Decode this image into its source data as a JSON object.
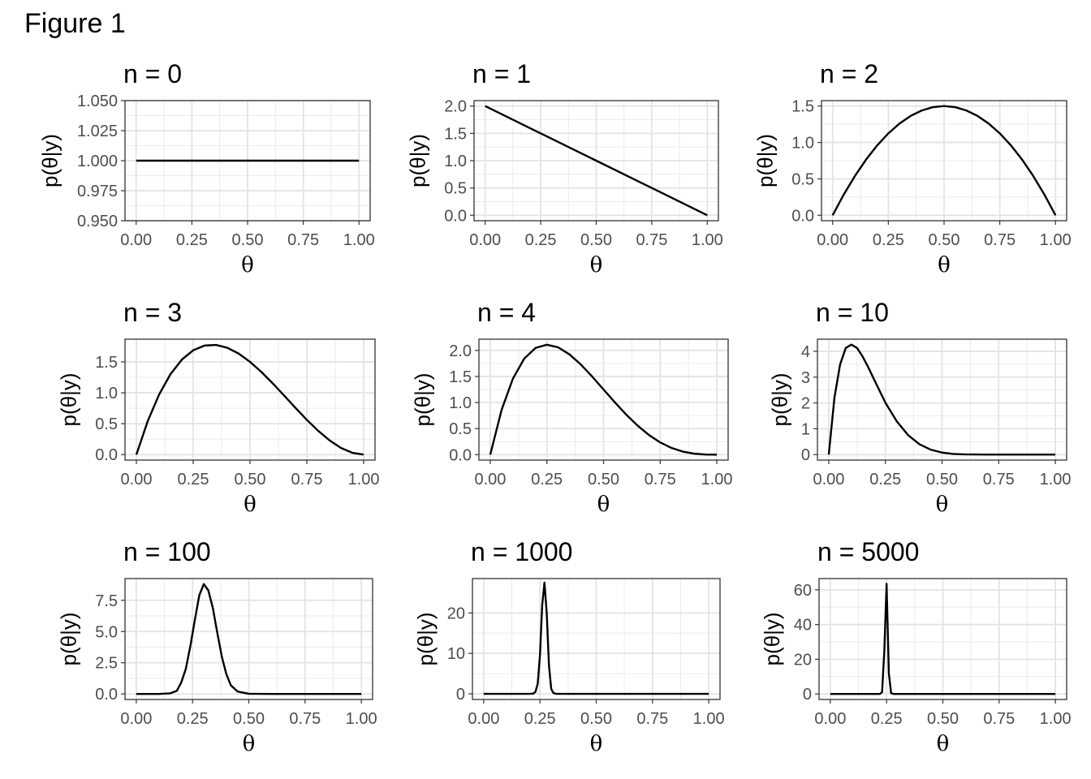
{
  "figure_title": "Figure 1",
  "chart_data": [
    {
      "type": "line",
      "title": "n = 0",
      "xlabel": "θ",
      "ylabel": "p(θ|y)",
      "xlim": [
        -0.05,
        1.05
      ],
      "ylim": [
        0.95,
        1.05
      ],
      "xticks": [
        0,
        0.25,
        0.5,
        0.75,
        1
      ],
      "xtick_labels": [
        "0.00",
        "0.25",
        "0.50",
        "0.75",
        "1.00"
      ],
      "yticks": [
        0.95,
        0.975,
        1.0,
        1.025,
        1.05
      ],
      "ytick_labels": [
        "0.950",
        "0.975",
        "1.000",
        "1.025",
        "1.050"
      ],
      "grid": true,
      "series": [
        {
          "x": [
            0,
            0.1,
            0.2,
            0.3,
            0.4,
            0.5,
            0.6,
            0.7,
            0.8,
            0.9,
            1
          ],
          "y": [
            1,
            1,
            1,
            1,
            1,
            1,
            1,
            1,
            1,
            1,
            1
          ]
        }
      ]
    },
    {
      "type": "line",
      "title": "n = 1",
      "xlabel": "θ",
      "ylabel": "p(θ|y)",
      "xlim": [
        -0.05,
        1.05
      ],
      "ylim": [
        -0.1,
        2.1
      ],
      "xticks": [
        0,
        0.25,
        0.5,
        0.75,
        1
      ],
      "xtick_labels": [
        "0.00",
        "0.25",
        "0.50",
        "0.75",
        "1.00"
      ],
      "yticks": [
        0,
        0.5,
        1,
        1.5,
        2
      ],
      "ytick_labels": [
        "0.0",
        "0.5",
        "1.0",
        "1.5",
        "2.0"
      ],
      "grid": true,
      "series": [
        {
          "x": [
            0,
            0.1,
            0.2,
            0.3,
            0.4,
            0.5,
            0.6,
            0.7,
            0.8,
            0.9,
            1
          ],
          "y": [
            2,
            1.8,
            1.6,
            1.4,
            1.2,
            1.0,
            0.8,
            0.6,
            0.4,
            0.2,
            0
          ]
        }
      ]
    },
    {
      "type": "line",
      "title": "n = 2",
      "xlabel": "θ",
      "ylabel": "p(θ|y)",
      "xlim": [
        -0.05,
        1.05
      ],
      "ylim": [
        -0.075,
        1.575
      ],
      "xticks": [
        0,
        0.25,
        0.5,
        0.75,
        1
      ],
      "xtick_labels": [
        "0.00",
        "0.25",
        "0.50",
        "0.75",
        "1.00"
      ],
      "yticks": [
        0,
        0.5,
        1,
        1.5
      ],
      "ytick_labels": [
        "0.0",
        "0.5",
        "1.0",
        "1.5"
      ],
      "grid": true,
      "series": [
        {
          "x": [
            0,
            0.05,
            0.1,
            0.15,
            0.2,
            0.25,
            0.3,
            0.35,
            0.4,
            0.45,
            0.5,
            0.55,
            0.6,
            0.65,
            0.7,
            0.75,
            0.8,
            0.85,
            0.9,
            0.95,
            1
          ],
          "y": [
            0,
            0.285,
            0.54,
            0.765,
            0.96,
            1.125,
            1.26,
            1.365,
            1.44,
            1.485,
            1.5,
            1.485,
            1.44,
            1.365,
            1.26,
            1.125,
            0.96,
            0.765,
            0.54,
            0.285,
            0
          ]
        }
      ]
    },
    {
      "type": "line",
      "title": "n = 3",
      "xlabel": "θ",
      "ylabel": "p(θ|y)",
      "xlim": [
        -0.05,
        1.05
      ],
      "ylim": [
        -0.089,
        1.867
      ],
      "xticks": [
        0,
        0.25,
        0.5,
        0.75,
        1
      ],
      "xtick_labels": [
        "0.00",
        "0.25",
        "0.50",
        "0.75",
        "1.00"
      ],
      "yticks": [
        0,
        0.5,
        1,
        1.5
      ],
      "ytick_labels": [
        "0.0",
        "0.5",
        "1.0",
        "1.5"
      ],
      "grid": true,
      "series": [
        {
          "x": [
            0,
            0.05,
            0.1,
            0.15,
            0.2,
            0.25,
            0.3,
            0.35,
            0.4,
            0.45,
            0.5,
            0.55,
            0.6,
            0.65,
            0.7,
            0.75,
            0.8,
            0.85,
            0.9,
            0.95,
            1
          ],
          "y": [
            0,
            0.542,
            0.972,
            1.301,
            1.536,
            1.688,
            1.764,
            1.774,
            1.728,
            1.634,
            1.5,
            1.337,
            1.152,
            0.956,
            0.756,
            0.562,
            0.384,
            0.23,
            0.108,
            0.029,
            0
          ]
        }
      ]
    },
    {
      "type": "line",
      "title": "n = 4",
      "xlabel": "θ",
      "ylabel": "p(θ|y)",
      "xlim": [
        -0.05,
        1.05
      ],
      "ylim": [
        -0.105,
        2.215
      ],
      "xticks": [
        0,
        0.25,
        0.5,
        0.75,
        1
      ],
      "xtick_labels": [
        "0.00",
        "0.25",
        "0.50",
        "0.75",
        "1.00"
      ],
      "yticks": [
        0,
        0.5,
        1,
        1.5,
        2
      ],
      "ytick_labels": [
        "0.0",
        "0.5",
        "1.0",
        "1.5",
        "2.0"
      ],
      "grid": true,
      "series": [
        {
          "x": [
            0,
            0.05,
            0.1,
            0.15,
            0.2,
            0.25,
            0.3,
            0.35,
            0.4,
            0.45,
            0.5,
            0.55,
            0.6,
            0.65,
            0.7,
            0.75,
            0.8,
            0.85,
            0.9,
            0.95,
            1
          ],
          "y": [
            0,
            0.857,
            1.458,
            1.843,
            2.048,
            2.109,
            2.058,
            1.922,
            1.728,
            1.497,
            1.25,
            1.003,
            0.768,
            0.558,
            0.378,
            0.234,
            0.128,
            0.058,
            0.018,
            0.002,
            0
          ]
        }
      ]
    },
    {
      "type": "line",
      "title": "n = 10",
      "xlabel": "θ",
      "ylabel": "p(θ|y)",
      "xlim": [
        -0.05,
        1.05
      ],
      "ylim": [
        -0.213,
        4.47
      ],
      "xticks": [
        0,
        0.25,
        0.5,
        0.75,
        1
      ],
      "xtick_labels": [
        "0.00",
        "0.25",
        "0.50",
        "0.75",
        "1.00"
      ],
      "yticks": [
        0,
        1,
        2,
        3,
        4
      ],
      "ytick_labels": [
        "0",
        "1",
        "2",
        "3",
        "4"
      ],
      "grid": true,
      "series": [
        {
          "x": [
            0,
            0.025,
            0.05,
            0.075,
            0.1,
            0.125,
            0.15,
            0.175,
            0.2,
            0.25,
            0.3,
            0.35,
            0.4,
            0.45,
            0.5,
            0.55,
            0.6,
            0.7,
            0.8,
            0.9,
            1
          ],
          "y": [
            0,
            2.2,
            3.49,
            4.13,
            4.26,
            4.13,
            3.79,
            3.37,
            2.91,
            2.01,
            1.29,
            0.756,
            0.403,
            0.191,
            0.078,
            0.026,
            0.0105,
            0.0006,
            0,
            0,
            0
          ]
        }
      ]
    },
    {
      "type": "line",
      "title": "n = 100",
      "xlabel": "θ",
      "ylabel": "p(θ|y)",
      "xlim": [
        -0.05,
        1.05
      ],
      "ylim": [
        -0.44,
        9.24
      ],
      "xticks": [
        0,
        0.25,
        0.5,
        0.75,
        1
      ],
      "xtick_labels": [
        "0.00",
        "0.25",
        "0.50",
        "0.75",
        "1.00"
      ],
      "yticks": [
        0,
        2.5,
        5,
        7.5
      ],
      "ytick_labels": [
        "0.0",
        "2.5",
        "5.0",
        "7.5"
      ],
      "grid": true,
      "series": [
        {
          "x": [
            0,
            0.1,
            0.15,
            0.18,
            0.2,
            0.22,
            0.24,
            0.26,
            0.28,
            0.3,
            0.32,
            0.34,
            0.36,
            0.38,
            0.4,
            0.42,
            0.45,
            0.5,
            0.6,
            1
          ],
          "y": [
            0,
            0,
            0.05,
            0.25,
            0.93,
            2.0,
            3.8,
            5.9,
            7.9,
            8.8,
            8.3,
            6.9,
            4.9,
            3.0,
            1.6,
            0.7,
            0.2,
            0.02,
            0,
            0
          ]
        }
      ]
    },
    {
      "type": "line",
      "title": "n = 1000",
      "xlabel": "θ",
      "ylabel": "p(θ|y)",
      "xlim": [
        -0.05,
        1.05
      ],
      "ylim": [
        -1.4,
        28.5
      ],
      "xticks": [
        0,
        0.25,
        0.5,
        0.75,
        1
      ],
      "xtick_labels": [
        "0.00",
        "0.25",
        "0.50",
        "0.75",
        "1.00"
      ],
      "yticks": [
        0,
        10,
        20
      ],
      "ytick_labels": [
        "0",
        "10",
        "20"
      ],
      "grid": true,
      "series": [
        {
          "x": [
            0,
            0.2,
            0.22,
            0.23,
            0.24,
            0.25,
            0.26,
            0.27,
            0.28,
            0.29,
            0.3,
            0.31,
            0.32,
            0.34,
            1
          ],
          "y": [
            0,
            0,
            0.05,
            0.5,
            2.5,
            9.5,
            22,
            27.5,
            20,
            7,
            1.2,
            0.2,
            0.02,
            0,
            0
          ]
        }
      ]
    },
    {
      "type": "line",
      "title": "n = 5000",
      "xlabel": "θ",
      "ylabel": "p(θ|y)",
      "xlim": [
        -0.05,
        1.05
      ],
      "ylim": [
        -3.2,
        66.5
      ],
      "xticks": [
        0,
        0.25,
        0.5,
        0.75,
        1
      ],
      "xtick_labels": [
        "0.00",
        "0.25",
        "0.50",
        "0.75",
        "1.00"
      ],
      "yticks": [
        0,
        20,
        40,
        60
      ],
      "ytick_labels": [
        "0",
        "20",
        "40",
        "60"
      ],
      "grid": true,
      "series": [
        {
          "x": [
            0,
            0.22,
            0.23,
            0.24,
            0.25,
            0.26,
            0.27,
            0.28,
            1
          ],
          "y": [
            0,
            0,
            1,
            25,
            63.5,
            12,
            0.5,
            0,
            0
          ]
        }
      ]
    }
  ]
}
